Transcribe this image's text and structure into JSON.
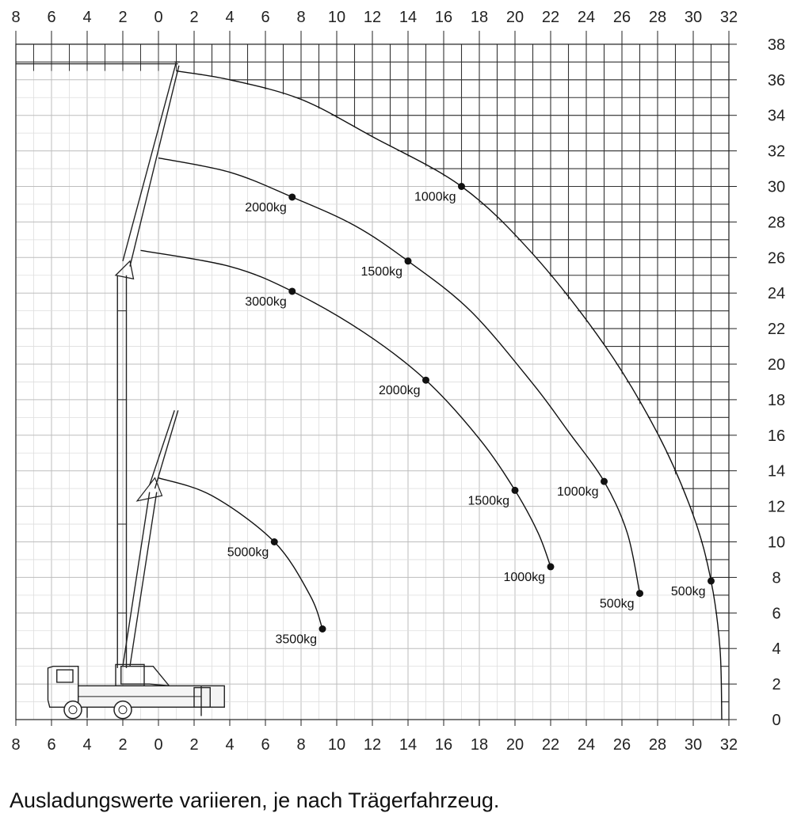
{
  "chart_data": {
    "type": "line",
    "x_ticks": [
      "8",
      "6",
      "4",
      "2",
      "0",
      "2",
      "4",
      "6",
      "8",
      "10",
      "12",
      "14",
      "16",
      "18",
      "20",
      "22",
      "24",
      "26",
      "28",
      "30",
      "32"
    ],
    "y_ticks": [
      "0",
      "2",
      "4",
      "6",
      "8",
      "10",
      "12",
      "14",
      "16",
      "18",
      "20",
      "22",
      "24",
      "26",
      "28",
      "30",
      "32",
      "34",
      "36",
      "38"
    ],
    "xlim": [
      -8,
      32
    ],
    "ylim": [
      0,
      38
    ],
    "grid": true,
    "series": [
      {
        "curve": [
          [
            0,
            13.6
          ],
          [
            3,
            12.6
          ],
          [
            6.5,
            10
          ],
          [
            8.5,
            7
          ],
          [
            9.2,
            5.1
          ]
        ],
        "points": [
          {
            "x": 6.5,
            "y": 10.0,
            "label": "5000kg"
          },
          {
            "x": 9.2,
            "y": 5.1,
            "label": "3500kg"
          }
        ]
      },
      {
        "curve": [
          [
            -1,
            26.4
          ],
          [
            4,
            25.5
          ],
          [
            7.5,
            24.1
          ],
          [
            11.5,
            21.8
          ],
          [
            15,
            19.1
          ],
          [
            18,
            15.8
          ],
          [
            20,
            12.9
          ],
          [
            21.3,
            10.5
          ],
          [
            22,
            8.6
          ]
        ],
        "points": [
          {
            "x": 7.5,
            "y": 24.1,
            "label": "3000kg"
          },
          {
            "x": 15.0,
            "y": 19.1,
            "label": "2000kg"
          },
          {
            "x": 20.0,
            "y": 12.9,
            "label": "1500kg"
          },
          {
            "x": 22.0,
            "y": 8.6,
            "label": "1000kg"
          }
        ]
      },
      {
        "curve": [
          [
            0,
            31.6
          ],
          [
            4,
            30.8
          ],
          [
            7.5,
            29.4
          ],
          [
            11,
            27.8
          ],
          [
            14,
            25.8
          ],
          [
            17.5,
            23
          ],
          [
            21,
            18.9
          ],
          [
            23,
            16.2
          ],
          [
            25,
            13.4
          ],
          [
            26.3,
            10.5
          ],
          [
            27,
            7.1
          ]
        ],
        "points": [
          {
            "x": 7.5,
            "y": 29.4,
            "label": "2000kg"
          },
          {
            "x": 14.0,
            "y": 25.8,
            "label": "1500kg"
          },
          {
            "x": 25.0,
            "y": 13.4,
            "label": "1000kg"
          },
          {
            "x": 27.0,
            "y": 7.1,
            "label": "500kg"
          }
        ]
      },
      {
        "curve": [
          [
            1,
            36.5
          ],
          [
            4,
            36
          ],
          [
            8,
            34.9
          ],
          [
            12,
            32.8
          ],
          [
            17,
            30
          ],
          [
            21,
            26.2
          ],
          [
            25,
            21.1
          ],
          [
            28,
            16.1
          ],
          [
            30,
            11.5
          ],
          [
            31,
            7.8
          ],
          [
            31.5,
            4
          ],
          [
            31.6,
            0
          ]
        ],
        "points": [
          {
            "x": 17.0,
            "y": 30.0,
            "label": "1000kg"
          },
          {
            "x": 31.0,
            "y": 7.8,
            "label": "500kg"
          }
        ]
      }
    ]
  },
  "caption": "Ausladungswerte variieren, je nach Trägerfahrzeug."
}
